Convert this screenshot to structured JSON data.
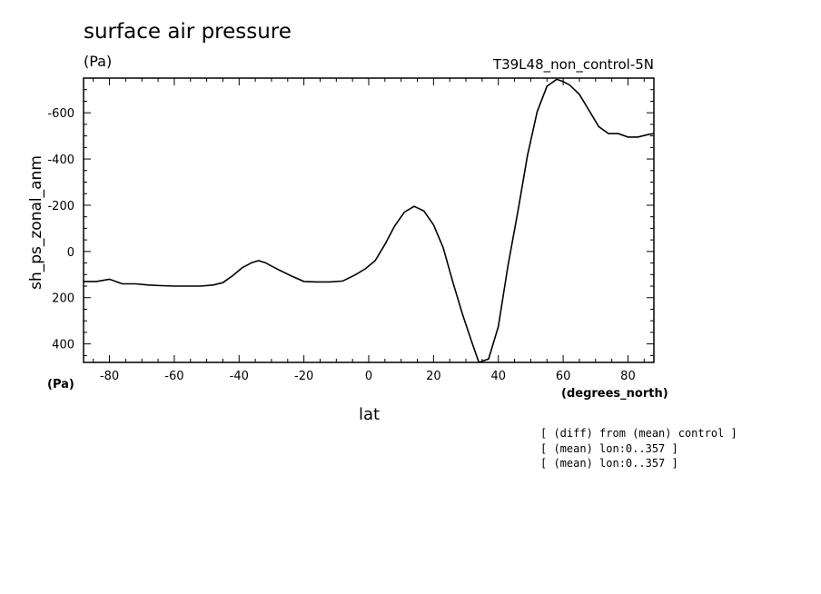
{
  "chart_data": {
    "type": "line",
    "title": "surface air pressure",
    "units_top": "(Pa)",
    "units_bottom": "(Pa)",
    "run_label": "T39L48_non_control-5N",
    "ylabel": "sh_ps_zonal_anm",
    "xlabel": "lat",
    "xunits": "(degrees_north)",
    "xlim": [
      -88,
      88
    ],
    "ylim": [
      480,
      -750
    ],
    "xticks": [
      -80,
      -60,
      -40,
      -20,
      0,
      20,
      40,
      60,
      80
    ],
    "xtick_labels": [
      "-80",
      "-60",
      "-40",
      "-20",
      "0",
      "20",
      "40",
      "60",
      "80"
    ],
    "yticks": [
      -600,
      -400,
      -200,
      0,
      200,
      400
    ],
    "ytick_labels": [
      "-600",
      "-400",
      "-200",
      "0",
      "200",
      "400"
    ],
    "grid": false,
    "series": [
      {
        "x": [
          -88,
          -84,
          -80,
          -76,
          -72,
          -68,
          -64,
          -60,
          -56,
          -52,
          -48,
          -45,
          -42,
          -39,
          -36,
          -34,
          -32,
          -28,
          -24,
          -20,
          -16,
          -12,
          -8,
          -4,
          -1,
          2,
          5,
          8,
          11,
          14,
          17,
          20,
          23,
          26,
          29,
          32,
          34,
          37,
          40,
          43,
          46,
          49,
          52,
          55,
          58,
          60,
          62,
          65,
          68,
          71,
          74,
          77,
          80,
          83,
          86,
          88
        ],
        "y": [
          130,
          130,
          120,
          140,
          140,
          145,
          148,
          150,
          150,
          150,
          145,
          135,
          105,
          70,
          48,
          40,
          48,
          78,
          105,
          130,
          132,
          132,
          128,
          100,
          75,
          40,
          -30,
          -110,
          -170,
          -195,
          -175,
          -115,
          -15,
          135,
          275,
          400,
          480,
          465,
          325,
          60,
          -170,
          -415,
          -605,
          -715,
          -745,
          -735,
          -720,
          -680,
          -610,
          -540,
          -510,
          -510,
          -495,
          -495,
          -505,
          -510
        ]
      }
    ],
    "notes": [
      "[ (diff) from (mean) control ]",
      "[ (mean) lon:0..357 ]",
      "[ (mean) lon:0..357 ]"
    ]
  }
}
